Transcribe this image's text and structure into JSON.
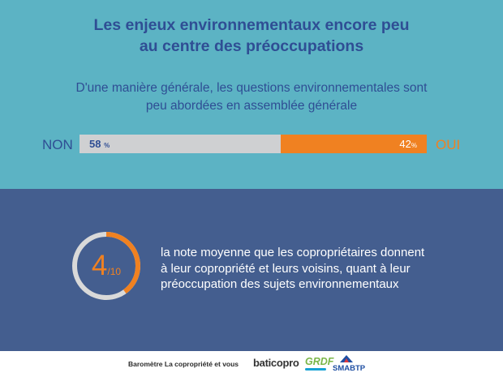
{
  "header": {
    "title_line1": "Les enjeux environnementaux encore peu",
    "title_line2": "au centre des préoccupations",
    "subtitle_line1": "D'une manière générale, les questions environnementales sont",
    "subtitle_line2": "peu abordées en assemblée générale"
  },
  "chart_data": {
    "type": "bar",
    "orientation": "horizontal-stacked",
    "categories": [
      "NON",
      "OUI"
    ],
    "values": [
      58,
      42
    ],
    "value_labels": [
      "58",
      "42"
    ],
    "unit": "%",
    "colors": [
      "#cfd0d2",
      "#f08121"
    ]
  },
  "bar": {
    "left_label": "NON",
    "right_label": "OUI",
    "non_value": "58",
    "oui_value": "42",
    "unit": "%"
  },
  "score": {
    "value": "4",
    "denominator": "/10",
    "value_number": 4,
    "max": 10,
    "description_line1": "la note moyenne que les copropriétaires donnent",
    "description_line2": "à leur copropriété et leurs voisins, quant à leur",
    "description_line3": "préoccupation des sujets environnementaux"
  },
  "footer": {
    "text": "Baromètre La copropriété et vous",
    "logo_baticopro": "baticopro",
    "logo_grdf": "GRDF",
    "logo_smabtp": "SMABTP"
  },
  "colors": {
    "top_background": "#5cb3c4",
    "bottom_background": "#445e8f",
    "title": "#2f4e94",
    "accent_orange": "#f08121",
    "bar_grey": "#cfd0d2",
    "gauge_track": "#d9d9d9"
  }
}
